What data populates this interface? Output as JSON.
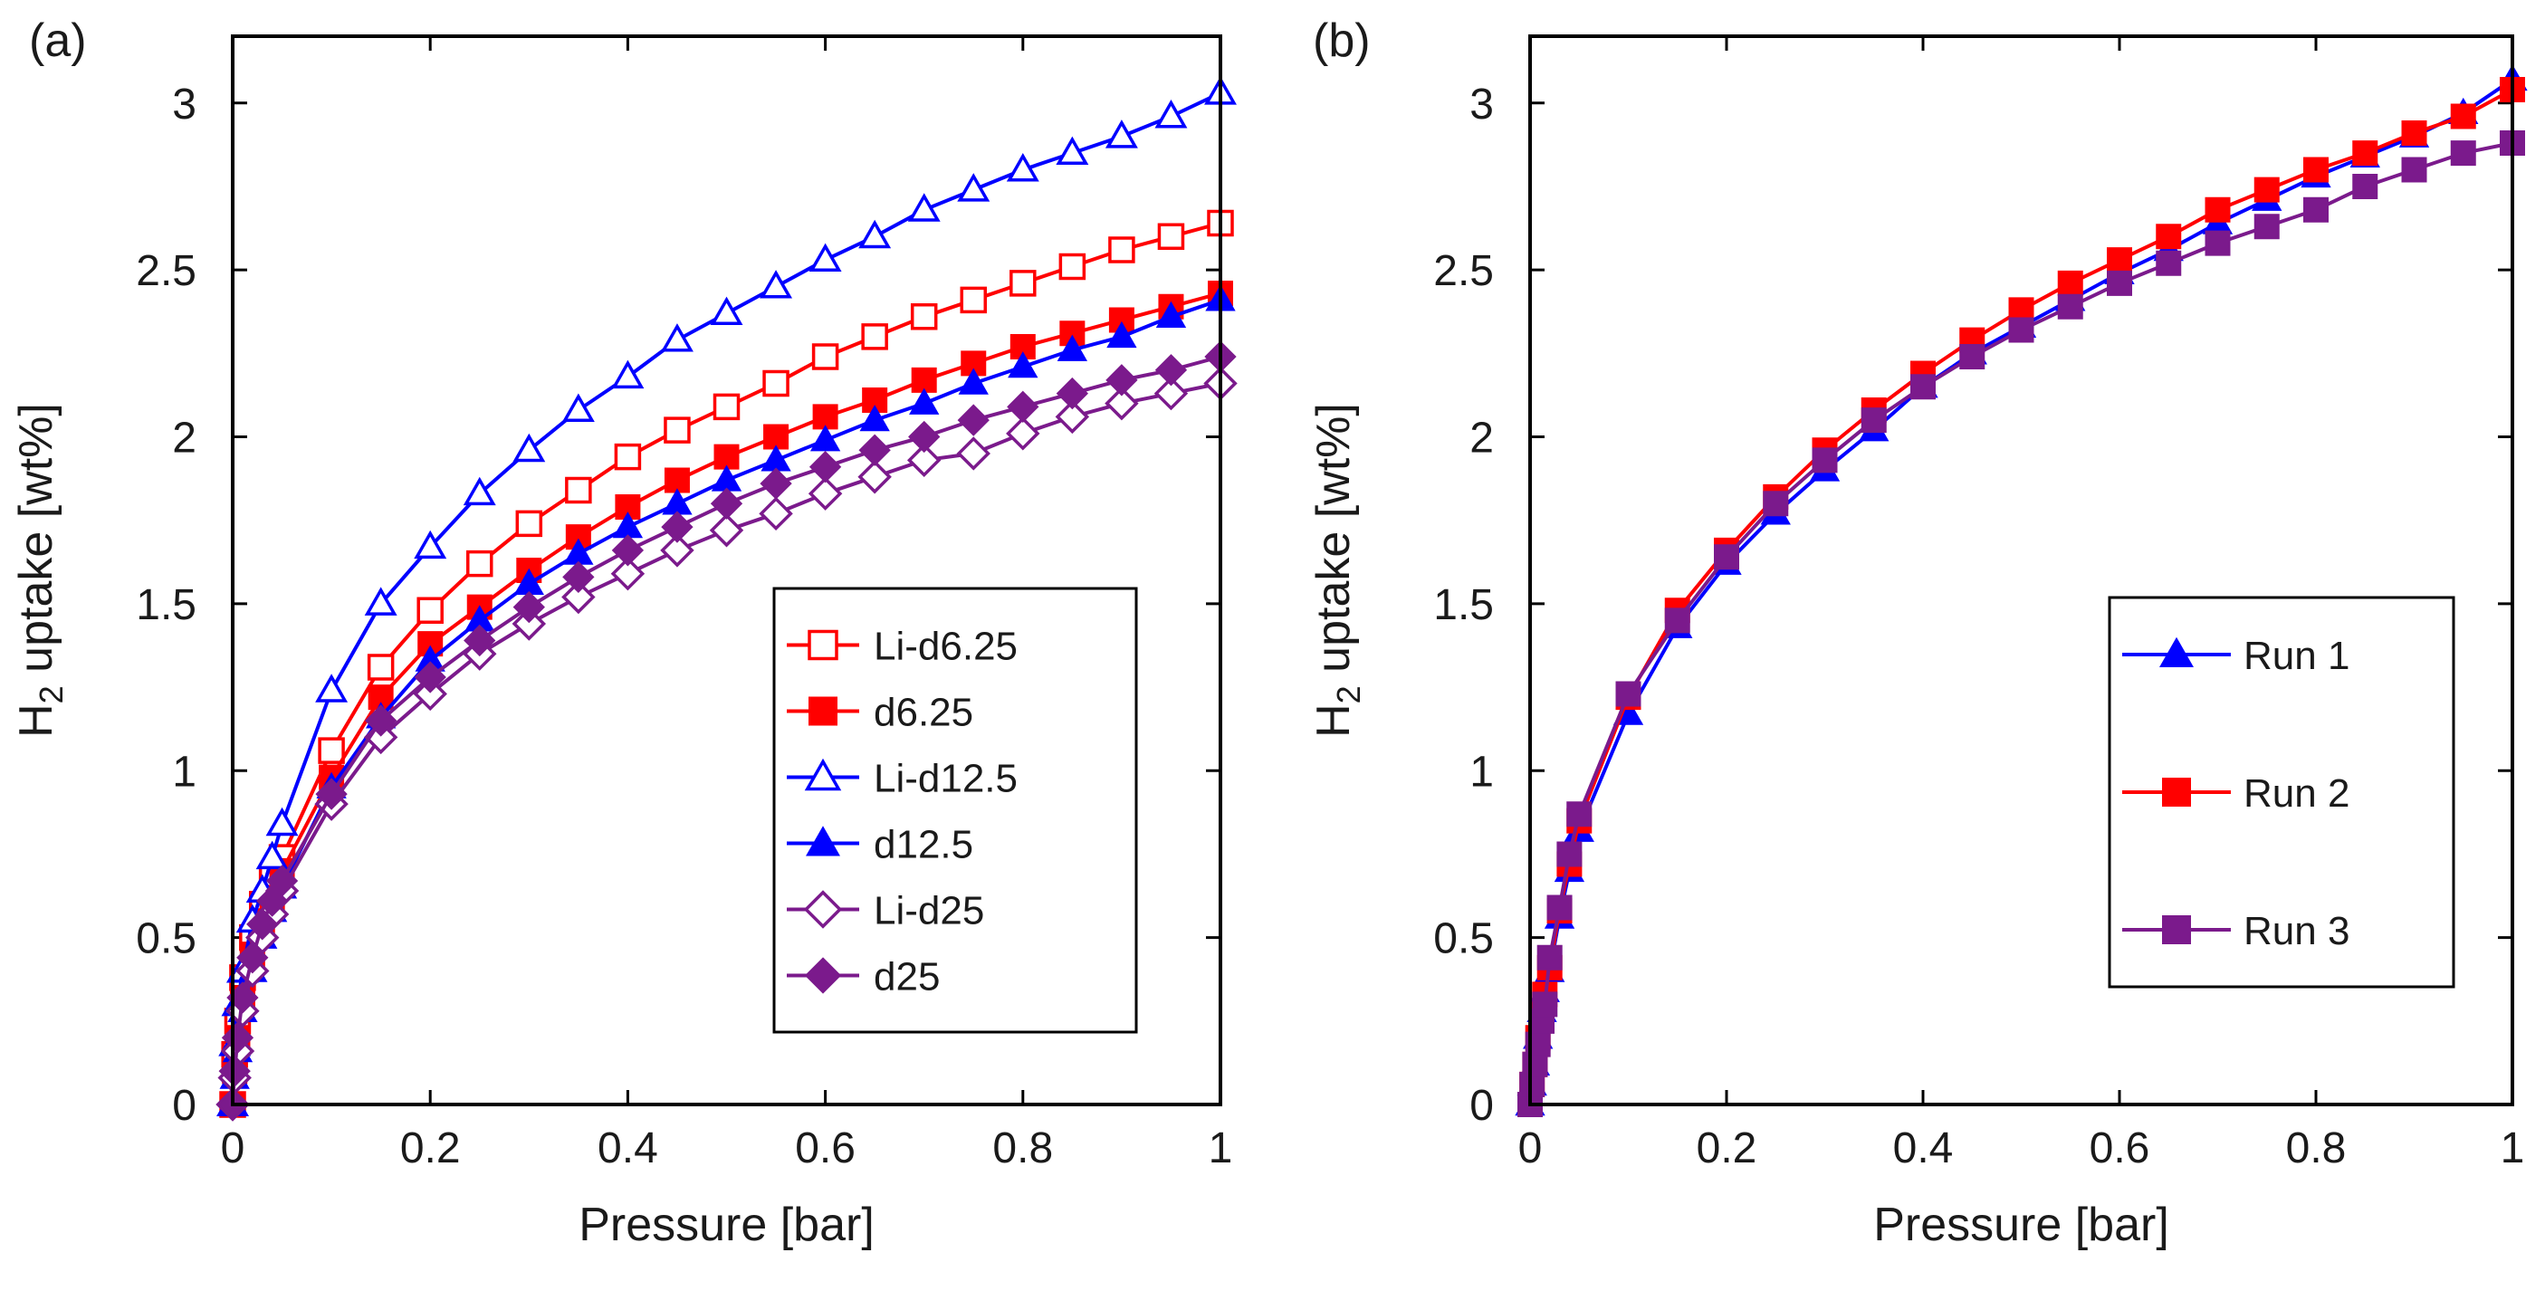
{
  "chart_data": [
    {
      "type": "line",
      "panel_label": "(a)",
      "xlabel": "Pressure [bar]",
      "ylabel": "H2 uptake [wt%]",
      "xlim": [
        0,
        1
      ],
      "ylim": [
        0,
        3.2
      ],
      "xticks": [
        0,
        0.2,
        0.4,
        0.6,
        0.8,
        1
      ],
      "xtick_labels": [
        "0",
        "0.2",
        "0.4",
        "0.6",
        "0.8",
        "1"
      ],
      "yticks": [
        0,
        0.5,
        1,
        1.5,
        2,
        2.5,
        3
      ],
      "ytick_labels": [
        "0",
        "0.5",
        "1",
        "1.5",
        "2",
        "2.5",
        "3"
      ],
      "legend_position": "lower-right",
      "series": [
        {
          "name": "Li-d6.25",
          "color": "#ff0000",
          "marker": "square",
          "filled": false,
          "x": [
            0,
            0.002,
            0.005,
            0.01,
            0.02,
            0.03,
            0.04,
            0.05,
            0.1,
            0.15,
            0.2,
            0.25,
            0.3,
            0.35,
            0.4,
            0.45,
            0.5,
            0.55,
            0.6,
            0.65,
            0.7,
            0.75,
            0.8,
            0.85,
            0.9,
            0.95,
            1.0
          ],
          "y": [
            0,
            0.15,
            0.25,
            0.38,
            0.5,
            0.6,
            0.68,
            0.74,
            1.06,
            1.31,
            1.48,
            1.62,
            1.74,
            1.84,
            1.94,
            2.02,
            2.09,
            2.16,
            2.24,
            2.3,
            2.36,
            2.41,
            2.46,
            2.51,
            2.56,
            2.6,
            2.64
          ]
        },
        {
          "name": "d6.25",
          "color": "#ff0000",
          "marker": "square",
          "filled": true,
          "x": [
            0,
            0.002,
            0.005,
            0.01,
            0.02,
            0.03,
            0.04,
            0.05,
            0.1,
            0.15,
            0.2,
            0.25,
            0.3,
            0.35,
            0.4,
            0.45,
            0.5,
            0.55,
            0.6,
            0.65,
            0.7,
            0.75,
            0.8,
            0.85,
            0.9,
            0.95,
            1.0
          ],
          "y": [
            0,
            0.1,
            0.2,
            0.32,
            0.45,
            0.55,
            0.62,
            0.7,
            0.98,
            1.22,
            1.38,
            1.49,
            1.6,
            1.7,
            1.79,
            1.87,
            1.94,
            2.0,
            2.06,
            2.11,
            2.17,
            2.22,
            2.27,
            2.31,
            2.35,
            2.39,
            2.43
          ]
        },
        {
          "name": "Li-d12.5",
          "color": "#0000ff",
          "marker": "triangle",
          "filled": false,
          "x": [
            0,
            0.002,
            0.005,
            0.01,
            0.02,
            0.03,
            0.04,
            0.05,
            0.1,
            0.15,
            0.2,
            0.25,
            0.3,
            0.35,
            0.4,
            0.45,
            0.5,
            0.55,
            0.6,
            0.65,
            0.7,
            0.75,
            0.8,
            0.85,
            0.9,
            0.95,
            1.0
          ],
          "y": [
            0,
            0.18,
            0.3,
            0.4,
            0.55,
            0.64,
            0.74,
            0.84,
            1.24,
            1.5,
            1.67,
            1.83,
            1.96,
            2.08,
            2.18,
            2.29,
            2.37,
            2.45,
            2.53,
            2.6,
            2.68,
            2.74,
            2.8,
            2.85,
            2.9,
            2.96,
            3.03
          ]
        },
        {
          "name": "d12.5",
          "color": "#0000ff",
          "marker": "triangle",
          "filled": true,
          "x": [
            0,
            0.002,
            0.005,
            0.01,
            0.02,
            0.03,
            0.04,
            0.05,
            0.1,
            0.15,
            0.2,
            0.25,
            0.3,
            0.35,
            0.4,
            0.45,
            0.5,
            0.55,
            0.6,
            0.65,
            0.7,
            0.75,
            0.8,
            0.85,
            0.9,
            0.95,
            1.0
          ],
          "y": [
            0,
            0.08,
            0.16,
            0.28,
            0.4,
            0.5,
            0.58,
            0.65,
            0.95,
            1.16,
            1.33,
            1.45,
            1.56,
            1.65,
            1.73,
            1.8,
            1.87,
            1.93,
            1.99,
            2.05,
            2.1,
            2.16,
            2.21,
            2.26,
            2.3,
            2.36,
            2.41
          ]
        },
        {
          "name": "Li-d25",
          "color": "#7b1a8c",
          "marker": "diamond",
          "filled": false,
          "x": [
            0,
            0.002,
            0.005,
            0.01,
            0.02,
            0.03,
            0.04,
            0.05,
            0.1,
            0.15,
            0.2,
            0.25,
            0.3,
            0.35,
            0.4,
            0.45,
            0.5,
            0.55,
            0.6,
            0.65,
            0.7,
            0.75,
            0.8,
            0.85,
            0.9,
            0.95,
            1.0
          ],
          "y": [
            0,
            0.08,
            0.16,
            0.28,
            0.4,
            0.5,
            0.57,
            0.64,
            0.9,
            1.1,
            1.23,
            1.35,
            1.44,
            1.52,
            1.59,
            1.66,
            1.72,
            1.77,
            1.83,
            1.88,
            1.93,
            1.95,
            2.01,
            2.06,
            2.1,
            2.13,
            2.16
          ]
        },
        {
          "name": "d25",
          "color": "#7b1a8c",
          "marker": "diamond",
          "filled": true,
          "x": [
            0,
            0.002,
            0.005,
            0.01,
            0.02,
            0.03,
            0.04,
            0.05,
            0.1,
            0.15,
            0.2,
            0.25,
            0.3,
            0.35,
            0.4,
            0.45,
            0.5,
            0.55,
            0.6,
            0.65,
            0.7,
            0.75,
            0.8,
            0.85,
            0.9,
            0.95,
            1.0
          ],
          "y": [
            0,
            0.1,
            0.2,
            0.32,
            0.44,
            0.54,
            0.61,
            0.67,
            0.93,
            1.15,
            1.28,
            1.39,
            1.49,
            1.58,
            1.66,
            1.73,
            1.8,
            1.86,
            1.91,
            1.96,
            2.0,
            2.05,
            2.09,
            2.13,
            2.17,
            2.2,
            2.24
          ]
        }
      ]
    },
    {
      "type": "line",
      "panel_label": "(b)",
      "xlabel": "Pressure [bar]",
      "ylabel": "H2 uptake [wt%]",
      "xlim": [
        0,
        1
      ],
      "ylim": [
        0,
        3.2
      ],
      "xticks": [
        0,
        0.2,
        0.4,
        0.6,
        0.8,
        1
      ],
      "xtick_labels": [
        "0",
        "0.2",
        "0.4",
        "0.6",
        "0.8",
        "1"
      ],
      "yticks": [
        0,
        0.5,
        1,
        1.5,
        2,
        2.5,
        3
      ],
      "ytick_labels": [
        "0",
        "0.5",
        "1",
        "1.5",
        "2",
        "2.5",
        "3"
      ],
      "legend_position": "lower-right",
      "series": [
        {
          "name": "Run 1",
          "color": "#0000ff",
          "marker": "triangle",
          "filled": true,
          "x": [
            0,
            0.002,
            0.005,
            0.008,
            0.012,
            0.015,
            0.02,
            0.03,
            0.04,
            0.05,
            0.1,
            0.15,
            0.2,
            0.25,
            0.3,
            0.35,
            0.4,
            0.45,
            0.5,
            0.55,
            0.6,
            0.65,
            0.7,
            0.75,
            0.8,
            0.85,
            0.9,
            0.95,
            1.0
          ],
          "y": [
            0,
            0.06,
            0.12,
            0.2,
            0.28,
            0.34,
            0.4,
            0.56,
            0.7,
            0.82,
            1.17,
            1.43,
            1.62,
            1.77,
            1.9,
            2.02,
            2.15,
            2.25,
            2.33,
            2.41,
            2.49,
            2.56,
            2.64,
            2.71,
            2.78,
            2.84,
            2.9,
            2.97,
            3.07
          ]
        },
        {
          "name": "Run 2",
          "color": "#ff0000",
          "marker": "square",
          "filled": true,
          "x": [
            0,
            0.002,
            0.005,
            0.008,
            0.012,
            0.015,
            0.02,
            0.03,
            0.04,
            0.05,
            0.1,
            0.15,
            0.2,
            0.25,
            0.3,
            0.35,
            0.4,
            0.45,
            0.5,
            0.55,
            0.6,
            0.65,
            0.7,
            0.75,
            0.8,
            0.85,
            0.9,
            0.95,
            1.0
          ],
          "y": [
            0,
            0.06,
            0.12,
            0.2,
            0.27,
            0.33,
            0.41,
            0.58,
            0.72,
            0.85,
            1.22,
            1.48,
            1.66,
            1.82,
            1.96,
            2.08,
            2.19,
            2.29,
            2.38,
            2.46,
            2.53,
            2.6,
            2.68,
            2.74,
            2.8,
            2.85,
            2.91,
            2.96,
            3.04
          ]
        },
        {
          "name": "Run 3",
          "color": "#7b1a8c",
          "marker": "square",
          "filled": true,
          "x": [
            0,
            0.002,
            0.005,
            0.008,
            0.012,
            0.015,
            0.02,
            0.03,
            0.04,
            0.05,
            0.1,
            0.15,
            0.2,
            0.25,
            0.3,
            0.35,
            0.4,
            0.45,
            0.5,
            0.55,
            0.6,
            0.65,
            0.7,
            0.75,
            0.8,
            0.85,
            0.9,
            0.95,
            1.0
          ],
          "y": [
            0,
            0.06,
            0.12,
            0.18,
            0.25,
            0.3,
            0.44,
            0.59,
            0.75,
            0.87,
            1.23,
            1.45,
            1.64,
            1.8,
            1.93,
            2.05,
            2.15,
            2.24,
            2.32,
            2.39,
            2.46,
            2.52,
            2.58,
            2.63,
            2.68,
            2.75,
            2.8,
            2.85,
            2.88
          ]
        }
      ]
    }
  ]
}
